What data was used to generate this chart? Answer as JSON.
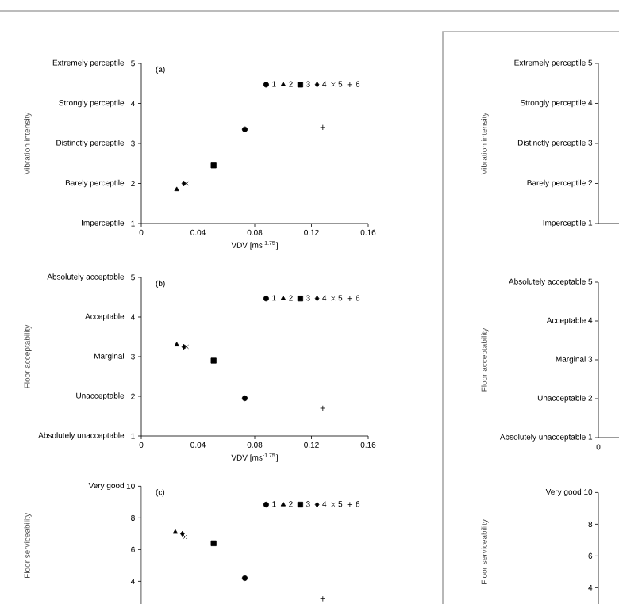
{
  "chart_data": [
    {
      "type": "scatter",
      "annotations": [
        "(a)",
        "Imperceptile",
        "Barely perceptile",
        "Distinctly perceptile",
        "Strongly perceptile",
        "Extremely perceptile"
      ],
      "xlabel": "VDV [ms$^{-1.75}$]",
      "ylabel": "Vibration intensity",
      "xlim": [
        0,
        0.16
      ],
      "xticks": [
        0,
        0.04,
        0.08,
        0.12,
        0.16
      ],
      "ylim": [
        1,
        5
      ],
      "yticks": [
        1,
        2,
        3,
        4,
        5
      ],
      "legend": "top right",
      "series": [
        {
          "name": "1",
          "color": "#000000",
          "marker": "circle",
          "x": [
            0.073
          ],
          "values": [
            3.35
          ]
        },
        {
          "name": "2",
          "color": "#000000",
          "marker": "triangle",
          "x": [
            0.025
          ],
          "values": [
            1.85
          ]
        },
        {
          "name": "3",
          "color": "#000000",
          "marker": "square",
          "x": [
            0.051
          ],
          "values": [
            2.45
          ]
        },
        {
          "name": "4",
          "color": "#000000",
          "marker": "diamond",
          "x": [
            0.03
          ],
          "values": [
            2.0
          ]
        },
        {
          "name": "5",
          "color": "#000000",
          "marker": "cross",
          "x": [
            0.032
          ],
          "values": [
            2.0
          ]
        },
        {
          "name": "6",
          "color": "#000000",
          "marker": "plus",
          "x": [
            0.128
          ],
          "values": [
            3.4
          ]
        }
      ]
    },
    {
      "type": "scatter",
      "annotations": [
        "(b)",
        "Absolutely unacceptable",
        "Unacceptable",
        "Marginal",
        "Acceptable",
        "Absolutely acceptable"
      ],
      "xlabel": "VDV [ms$^{-1.75}$]",
      "ylabel": "Floor acceptability",
      "xlim": [
        0,
        0.16
      ],
      "xticks": [
        0,
        0.04,
        0.08,
        0.12,
        0.16
      ],
      "ylim": [
        1,
        5
      ],
      "yticks": [
        1,
        2,
        3,
        4,
        5
      ],
      "legend": "top right",
      "series": [
        {
          "name": "1",
          "color": "#000000",
          "marker": "circle",
          "x": [
            0.073
          ],
          "values": [
            1.95
          ]
        },
        {
          "name": "2",
          "color": "#000000",
          "marker": "triangle",
          "x": [
            0.025
          ],
          "values": [
            3.3
          ]
        },
        {
          "name": "3",
          "color": "#000000",
          "marker": "square",
          "x": [
            0.051
          ],
          "values": [
            2.9
          ]
        },
        {
          "name": "4",
          "color": "#000000",
          "marker": "diamond",
          "x": [
            0.03
          ],
          "values": [
            3.25
          ]
        },
        {
          "name": "5",
          "color": "#000000",
          "marker": "cross",
          "x": [
            0.032
          ],
          "values": [
            3.25
          ]
        },
        {
          "name": "6",
          "color": "#000000",
          "marker": "plus",
          "x": [
            0.128
          ],
          "values": [
            1.7
          ]
        }
      ]
    },
    {
      "type": "scatter",
      "annotations": [
        "(c)",
        "Very good"
      ],
      "ylabel": "Floor serviceability",
      "xlim": [
        0,
        0.16
      ],
      "ylim": [
        2.5,
        10
      ],
      "yticks": [
        4,
        6,
        8,
        10
      ],
      "tick_labels": "y",
      "legend": "top right",
      "series": [
        {
          "name": "1",
          "color": "#000000",
          "marker": "circle",
          "x": [
            0.073
          ],
          "values": [
            4.2
          ]
        },
        {
          "name": "2",
          "color": "#000000",
          "marker": "triangle",
          "x": [
            0.024
          ],
          "values": [
            7.1
          ]
        },
        {
          "name": "3",
          "color": "#000000",
          "marker": "square",
          "x": [
            0.051
          ],
          "values": [
            6.4
          ]
        },
        {
          "name": "4",
          "color": "#000000",
          "marker": "diamond",
          "x": [
            0.029
          ],
          "values": [
            7.0
          ]
        },
        {
          "name": "5",
          "color": "#000000",
          "marker": "cross",
          "x": [
            0.031
          ],
          "values": [
            6.8
          ]
        },
        {
          "name": "6",
          "color": "#000000",
          "marker": "plus",
          "x": [
            0.128
          ],
          "values": [
            2.9
          ]
        }
      ]
    },
    {
      "type": "other",
      "ylabel": "Vibration intensity",
      "annotations": [
        "Extremely perceptile 5",
        "Strongly perceptile 4",
        "Distinctly perceptile 3",
        "Barely perceptile 2",
        "Imperceptile 1"
      ]
    },
    {
      "type": "other",
      "ylabel": "Floor acceptability",
      "annotations": [
        "Absolutely acceptable 5",
        "Acceptable 4",
        "Marginal 3",
        "Unacceptable 2",
        "Absolutely unacceptable 1",
        "0"
      ]
    },
    {
      "type": "other",
      "ylabel": "Floor serviceability",
      "annotations": [
        "Very good  10",
        "8",
        "6",
        "4"
      ]
    }
  ]
}
